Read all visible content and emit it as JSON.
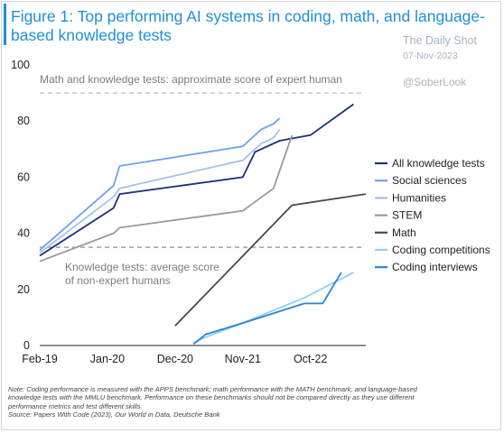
{
  "header": {
    "title": "Figure 1: Top performing AI systems in coding, math, and language-based knowledge tests"
  },
  "watermark": {
    "brand": "The Daily Shot",
    "date": "07-Nov-2023",
    "handle": "@SoberLook"
  },
  "annotations": {
    "expert_line": "Math and knowledge tests: approximate score of expert human",
    "nonexpert_line_1": "Knowledge tests: average score",
    "nonexpert_line_2": "of non-expert humans"
  },
  "footnote": {
    "line1": "Note: Coding performance is measured with the APPS benchmark; math performance with the MATH benchmark; and language-based",
    "line2": "knowledge tests with the MMLU benchmark. Performance on these benchmarks should not be compared directly as they use different",
    "line3": "performance metrics and test different skills.",
    "line4": "Source: Papers With Code (2023), Our World in Data, Deutsche Bank"
  },
  "chart_data": {
    "type": "line",
    "xlim": [
      "2019-02",
      "2023-07"
    ],
    "ylim": [
      0,
      100
    ],
    "x_ticks": [
      {
        "label": "Feb-19",
        "x": "2019-02"
      },
      {
        "label": "Jan-20",
        "x": "2020-01"
      },
      {
        "label": "Dec-20",
        "x": "2020-12"
      },
      {
        "label": "Nov-21",
        "x": "2021-11"
      },
      {
        "label": "Oct-22",
        "x": "2022-10"
      }
    ],
    "y_ticks": [
      {
        "label": "0",
        "y": 0
      },
      {
        "label": "20",
        "y": 20
      },
      {
        "label": "40",
        "y": 40
      },
      {
        "label": "60",
        "y": 60
      },
      {
        "label": "80",
        "y": 80
      },
      {
        "label": "100",
        "y": 100
      }
    ],
    "reference_lines": [
      {
        "y": 90,
        "color": "#bdbdbd",
        "style": "dashed"
      },
      {
        "y": 35,
        "color": "#8e8e8e",
        "style": "dashed"
      }
    ],
    "legend_placement": "right",
    "series": [
      {
        "name": "All knowledge tests",
        "color": "#1c2f7a",
        "points": [
          [
            "2019-02",
            32
          ],
          [
            "2020-02",
            49
          ],
          [
            "2020-03",
            54
          ],
          [
            "2021-11",
            60
          ],
          [
            "2022-01",
            69
          ],
          [
            "2022-05",
            73
          ],
          [
            "2022-10",
            75
          ],
          [
            "2023-05",
            86
          ]
        ]
      },
      {
        "name": "Social sciences",
        "color": "#6ea3e8",
        "points": [
          [
            "2019-02",
            34
          ],
          [
            "2020-02",
            57
          ],
          [
            "2020-03",
            64
          ],
          [
            "2021-11",
            71
          ],
          [
            "2022-02",
            77
          ],
          [
            "2022-04",
            79
          ],
          [
            "2022-05",
            81
          ]
        ]
      },
      {
        "name": "Humanities",
        "color": "#a6c2ea",
        "points": [
          [
            "2019-02",
            33
          ],
          [
            "2020-02",
            53
          ],
          [
            "2020-03",
            56
          ],
          [
            "2021-11",
            66
          ],
          [
            "2022-02",
            72
          ],
          [
            "2022-04",
            74
          ],
          [
            "2022-05",
            77
          ]
        ]
      },
      {
        "name": "STEM",
        "color": "#9a9a9a",
        "points": [
          [
            "2019-02",
            30
          ],
          [
            "2020-02",
            40
          ],
          [
            "2020-03",
            42
          ],
          [
            "2021-11",
            48
          ],
          [
            "2022-04",
            56
          ],
          [
            "2022-07",
            75
          ]
        ]
      },
      {
        "name": "Math",
        "color": "#4a4a4a",
        "points": [
          [
            "2020-12",
            7
          ],
          [
            "2022-07",
            50
          ],
          [
            "2023-07",
            54
          ]
        ]
      },
      {
        "name": "Coding competitions",
        "color": "#8fd0f2",
        "points": [
          [
            "2021-03",
            1
          ],
          [
            "2021-05",
            3
          ],
          [
            "2021-11",
            8
          ],
          [
            "2022-09",
            17
          ],
          [
            "2023-05",
            26
          ]
        ]
      },
      {
        "name": "Coding interviews",
        "color": "#2a86cf",
        "points": [
          [
            "2021-03",
            0.5
          ],
          [
            "2021-05",
            4
          ],
          [
            "2021-11",
            8
          ],
          [
            "2022-09",
            15
          ],
          [
            "2022-12",
            15
          ],
          [
            "2023-03",
            26
          ]
        ]
      }
    ]
  }
}
